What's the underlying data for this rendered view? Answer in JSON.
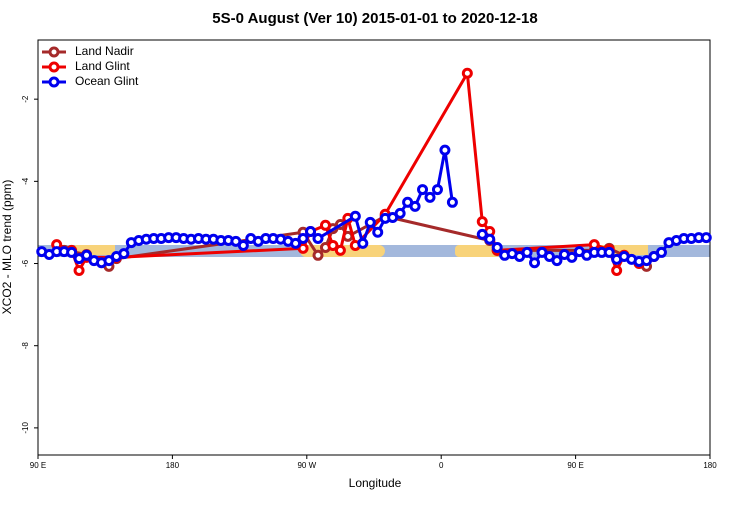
{
  "chart_data": {
    "type": "line",
    "title": "5S-0 August (Ver 10)   2015-01-01 to 2020-12-18",
    "x_label": "Longitude",
    "y_label": "XCO2 - MLO trend (ppm)",
    "xlim": [
      90,
      540
    ],
    "ylim": [
      -10.66,
      -0.56
    ],
    "xticks": [
      {
        "value": 90,
        "label": "90 E"
      },
      {
        "value": 180,
        "label": "180"
      },
      {
        "value": 270,
        "label": "90 W"
      },
      {
        "value": 360,
        "label": "0"
      },
      {
        "value": 450,
        "label": "90 E"
      },
      {
        "value": 540,
        "label": "180"
      }
    ],
    "yticks": [
      -2,
      -4,
      -6,
      -8,
      -10
    ],
    "legend": "top-left",
    "series": [
      {
        "name": "Land Nadir",
        "color": "#a52a2a",
        "x": [
          107.5,
          122.5,
          137.5,
          142.5,
          267.5,
          277.5,
          282.5,
          287.5,
          292.5,
          297.5,
          322.5,
          392.5,
          397.5,
          462.5,
          472.5,
          492.5,
          497.5
        ],
        "values": [
          -5.68,
          -5.78,
          -6.07,
          -5.88,
          -5.24,
          -5.8,
          -5.61,
          -5.15,
          -5.05,
          -5.34,
          -4.85,
          -5.44,
          -5.68,
          -5.68,
          -5.63,
          -5.98,
          -6.07
        ]
      },
      {
        "name": "Land Glint",
        "color": "#ee0000",
        "x": [
          102.5,
          112.5,
          117.5,
          122.5,
          142.5,
          267.5,
          272.5,
          282.5,
          287.5,
          292.5,
          297.5,
          302.5,
          322.5,
          377.5,
          387.5,
          392.5,
          397.5,
          462.5,
          472.5,
          477.5,
          482.5,
          492.5,
          502.5
        ],
        "values": [
          -5.54,
          -5.68,
          -6.17,
          -5.85,
          -5.85,
          -5.63,
          -5.22,
          -5.07,
          -5.56,
          -5.68,
          -4.9,
          -5.56,
          -4.8,
          -1.37,
          -4.98,
          -5.22,
          -5.68,
          -5.54,
          -5.66,
          -6.17,
          -5.8,
          -6.0,
          -5.83
        ]
      },
      {
        "name": "Ocean Glint",
        "color": "#0000ee",
        "x": [
          92.5,
          97.5,
          102.5,
          107.5,
          112.5,
          117.5,
          122.5,
          127.5,
          132.5,
          137.5,
          142.5,
          147.5,
          152.5,
          157.5,
          162.5,
          167.5,
          172.5,
          177.5,
          182.5,
          187.5,
          192.5,
          197.5,
          202.5,
          207.5,
          212.5,
          217.5,
          222.5,
          227.5,
          232.5,
          237.5,
          242.5,
          247.5,
          252.5,
          257.5,
          262.5,
          267.5,
          272.5,
          277.5,
          302.5,
          307.5,
          312.5,
          317.5,
          322.5,
          327.5,
          332.5,
          337.5,
          342.5,
          347.5,
          352.5,
          357.5,
          362.5,
          367.5,
          377.5,
          387.5,
          392.5,
          397.5,
          402.5,
          407.5,
          412.5,
          417.5,
          422.5,
          427.5,
          432.5,
          437.5,
          442.5,
          447.5,
          452.5,
          457.5,
          462.5,
          467.5,
          472.5,
          477.5,
          482.5,
          487.5,
          492.5,
          497.5,
          502.5,
          507.5,
          512.5,
          517.5,
          522.5,
          527.5,
          532.5,
          537.5
        ],
        "values": [
          -5.71,
          -5.78,
          -5.71,
          -5.71,
          -5.73,
          -5.88,
          -5.8,
          -5.93,
          -5.98,
          -5.93,
          -5.83,
          -5.76,
          -5.49,
          -5.44,
          -5.41,
          -5.39,
          -5.39,
          -5.37,
          -5.37,
          -5.39,
          -5.41,
          -5.39,
          -5.41,
          -5.41,
          -5.44,
          -5.44,
          -5.46,
          -5.56,
          -5.39,
          -5.46,
          -5.39,
          -5.39,
          -5.41,
          -5.46,
          -5.51,
          -5.39,
          -5.22,
          -5.39,
          -4.85,
          -5.51,
          -5.0,
          -5.24,
          -4.9,
          -4.88,
          -4.78,
          -4.51,
          -4.61,
          -4.2,
          -4.39,
          -4.2,
          -3.24,
          -4.51,
          null,
          -5.29,
          -5.41,
          -5.61,
          -5.8,
          -5.76,
          -5.83,
          -5.73,
          -5.98,
          -5.73,
          -5.83,
          -5.93,
          -5.78,
          -5.85,
          -5.71,
          -5.8,
          -5.73,
          -5.73,
          -5.73,
          -5.9,
          -5.83,
          -5.9,
          -5.95,
          -5.93,
          -5.83,
          -5.73,
          -5.49,
          -5.44,
          -5.39,
          -5.39,
          -5.37,
          -5.37
        ]
      }
    ]
  }
}
